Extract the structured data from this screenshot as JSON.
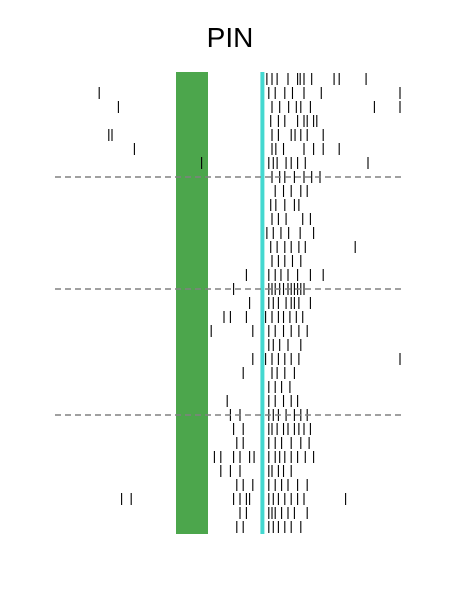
{
  "chart_data": {
    "type": "raster",
    "title": "PIN",
    "xlabel": "",
    "ylabel": "",
    "xlim": [
      -2.0,
      3.0
    ],
    "trials": 33,
    "colors": {
      "stimulus_band": "#4ca64c",
      "event_line": "#44d8d0",
      "spike": "#000000",
      "divider": "#808080",
      "background": "#ffffff"
    },
    "stimulus_band": [
      -0.5,
      0.0
    ],
    "event_line_x": 0.85,
    "dividers_after_trial": [
      8,
      16,
      25
    ],
    "trials_spikes": [
      [
        0.92,
        1.0,
        1.08,
        1.25,
        1.4,
        1.44,
        1.5,
        1.62,
        1.97,
        2.05,
        2.47
      ],
      [
        -1.7,
        0.95,
        1.05,
        1.2,
        1.32,
        1.5,
        1.77,
        3.0
      ],
      [
        -1.4,
        1.0,
        1.12,
        1.26,
        1.38,
        1.45,
        1.6,
        2.6,
        3.0
      ],
      [
        0.98,
        1.1,
        1.2,
        1.4,
        1.5,
        1.55,
        1.65,
        1.7
      ],
      [
        -1.55,
        -1.5,
        1.0,
        1.1,
        1.3,
        1.36,
        1.45,
        1.55,
        1.8
      ],
      [
        -1.15,
        1.0,
        1.06,
        1.18,
        1.5,
        1.65,
        1.8,
        2.05
      ],
      [
        -0.1,
        0.95,
        1.02,
        1.08,
        1.22,
        1.3,
        1.4,
        1.52,
        2.5
      ],
      [
        1.0,
        1.12,
        1.2,
        1.35,
        1.5,
        1.62,
        1.75
      ],
      [
        1.05,
        1.18,
        1.3,
        1.45,
        1.55
      ],
      [
        0.98,
        1.06,
        1.2,
        1.35,
        1.42
      ],
      [
        1.0,
        1.1,
        1.22,
        1.48,
        1.6
      ],
      [
        0.92,
        1.02,
        1.14,
        1.26,
        1.44,
        1.65
      ],
      [
        0.98,
        1.08,
        1.2,
        1.3,
        1.42,
        1.52,
        2.3
      ],
      [
        1.0,
        1.1,
        1.2,
        1.32,
        1.45
      ],
      [
        0.6,
        0.95,
        1.05,
        1.14,
        1.25,
        1.4,
        1.6,
        1.8
      ],
      [
        0.4,
        0.95,
        1.0,
        1.05,
        1.12,
        1.18,
        1.25,
        1.3,
        1.35,
        1.4,
        1.45,
        1.5
      ],
      [
        0.65,
        0.95,
        1.02,
        1.1,
        1.22,
        1.3,
        1.35,
        1.42,
        1.6
      ],
      [
        0.25,
        0.35,
        0.6,
        0.9,
        1.0,
        1.1,
        1.18,
        1.28,
        1.38,
        1.48
      ],
      [
        0.05,
        0.7,
        0.95,
        1.05,
        1.18,
        1.3,
        1.42,
        1.55
      ],
      [
        0.95,
        1.02,
        1.12,
        1.25,
        1.45
      ],
      [
        0.7,
        0.9,
        1.0,
        1.1,
        1.2,
        1.3,
        1.42,
        3.0
      ],
      [
        0.55,
        1.0,
        1.08,
        1.2,
        1.35
      ],
      [
        0.95,
        1.05,
        1.15,
        1.28
      ],
      [
        0.3,
        0.95,
        1.05,
        1.18,
        1.3,
        1.4
      ],
      [
        0.35,
        0.5,
        0.95,
        1.02,
        1.1,
        1.22,
        1.35,
        1.45,
        1.55
      ],
      [
        0.4,
        0.55,
        0.95,
        1.0,
        1.08,
        1.18,
        1.25,
        1.35,
        1.42,
        1.5,
        1.6
      ],
      [
        0.45,
        0.55,
        0.95,
        1.05,
        1.15,
        1.3,
        1.45,
        1.58
      ],
      [
        0.1,
        0.2,
        0.4,
        0.5,
        0.65,
        0.72,
        0.95,
        1.05,
        1.12,
        1.2,
        1.3,
        1.4,
        1.52,
        1.65
      ],
      [
        0.2,
        0.35,
        0.5,
        0.95,
        1.0,
        1.1,
        1.18,
        1.3
      ],
      [
        0.45,
        0.55,
        0.7,
        0.95,
        1.05,
        1.15,
        1.25,
        1.4,
        1.55
      ],
      [
        -1.35,
        -1.2,
        0.4,
        0.5,
        0.6,
        0.65,
        0.95,
        1.02,
        1.1,
        1.2,
        1.3,
        1.4,
        1.5,
        2.15
      ],
      [
        0.5,
        0.6,
        0.95,
        1.0,
        1.05,
        1.15,
        1.25,
        1.35,
        1.55
      ],
      [
        0.45,
        0.55,
        0.95,
        1.02,
        1.1,
        1.2,
        1.3,
        1.45
      ]
    ]
  }
}
